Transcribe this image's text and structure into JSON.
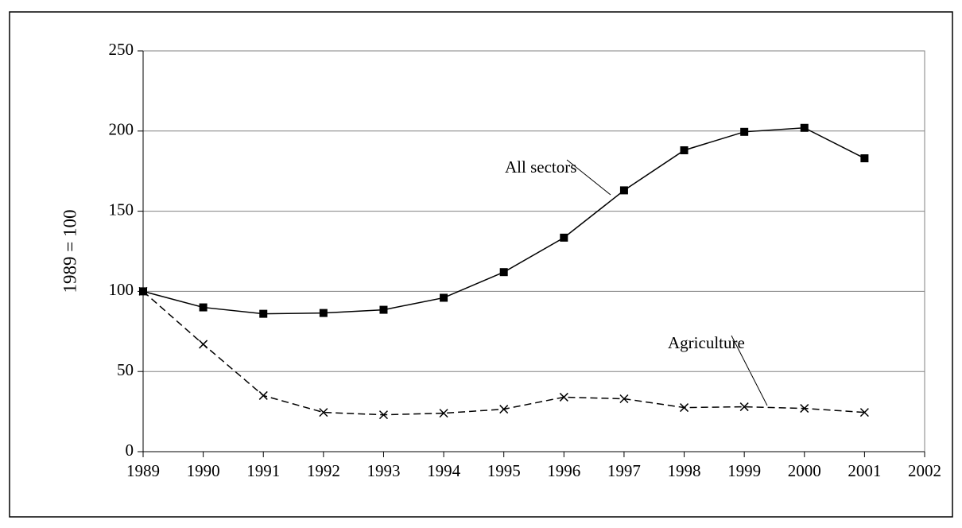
{
  "chart_data": {
    "type": "line",
    "y_label": "1989 = 100",
    "x": [
      1989,
      1990,
      1991,
      1992,
      1993,
      1994,
      1995,
      1996,
      1997,
      1998,
      1999,
      2000,
      2001
    ],
    "series": [
      {
        "name": "All sectors",
        "color": "#000000",
        "marker": "square",
        "dashed": false,
        "values": [
          100,
          90,
          86,
          86.5,
          88.5,
          96,
          112,
          133.5,
          163,
          188,
          199.5,
          202,
          183
        ]
      },
      {
        "name": "Agriculture",
        "color": "#000000",
        "marker": "x",
        "dashed": true,
        "values": [
          100,
          67,
          35,
          24.5,
          23,
          24,
          26.5,
          34,
          33,
          27.5,
          28,
          27,
          24.5
        ]
      }
    ],
    "xlim": [
      1989,
      2002
    ],
    "xticks": [
      1989,
      1990,
      1991,
      1992,
      1993,
      1994,
      1995,
      1996,
      1997,
      1998,
      1999,
      2000,
      2001,
      2002
    ],
    "ylim": [
      0,
      250
    ],
    "yticks": [
      0,
      50,
      100,
      150,
      200,
      250
    ],
    "grid": true
  }
}
